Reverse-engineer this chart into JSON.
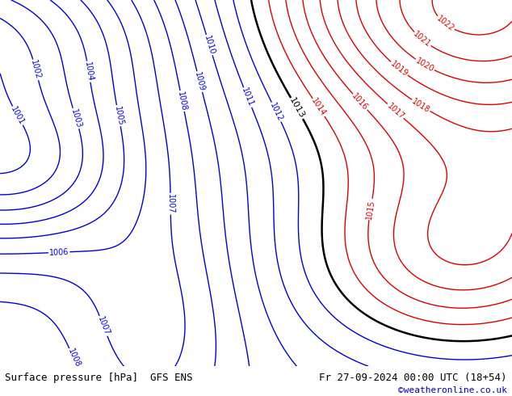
{
  "title_left": "Surface pressure [hPa]  GFS ENS",
  "title_right": "Fr 27-09-2024 00:00 UTC (18+54)",
  "credit": "©weatheronline.co.uk",
  "bg_color": "#b8d87a",
  "blue_color": "#0000dd",
  "red_color": "#dd0000",
  "black_color": "#000000",
  "white_color": "#ffffff",
  "label_fontsize": 7,
  "title_fontsize": 9,
  "credit_fontsize": 8,
  "contour_linewidth": 1.0,
  "black_linewidth": 1.8,
  "fig_width": 6.34,
  "fig_height": 4.9,
  "dpi": 100
}
